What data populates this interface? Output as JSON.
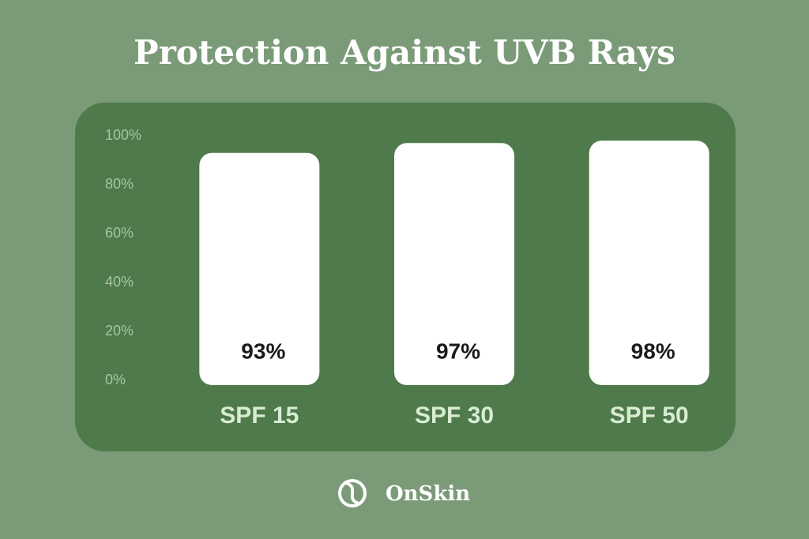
{
  "chart_data": {
    "type": "bar",
    "title": "Protection Against UVB Rays",
    "categories": [
      "SPF 15",
      "SPF 30",
      "SPF 50"
    ],
    "values": [
      93,
      97,
      98
    ],
    "value_labels": [
      "93%",
      "97%",
      "98%"
    ],
    "color": "#ffffff",
    "ylim": [
      0,
      100
    ],
    "yticks": [
      {
        "value": 0,
        "label": "0%"
      },
      {
        "value": 20,
        "label": "20%"
      },
      {
        "value": 40,
        "label": "40%"
      },
      {
        "value": 60,
        "label": "60%"
      },
      {
        "value": 80,
        "label": "80%"
      },
      {
        "value": 100,
        "label": "100%"
      }
    ],
    "grid": false
  },
  "brand": "OnSkin"
}
